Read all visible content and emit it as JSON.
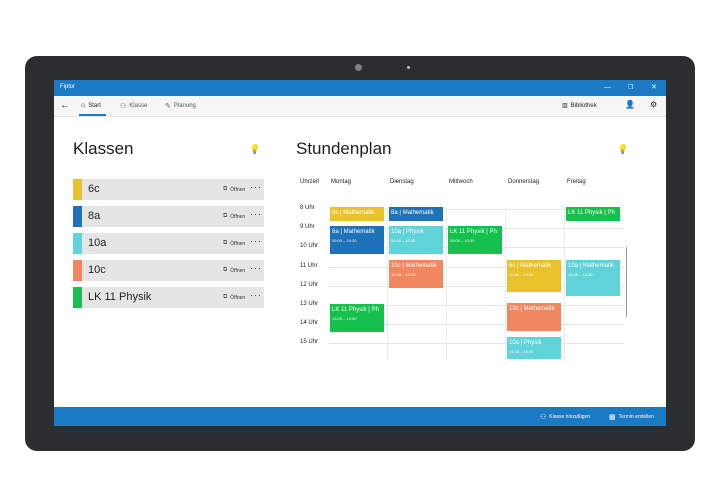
{
  "app": {
    "title": "Fiplor"
  },
  "nav": {
    "tabs": [
      {
        "label": "Start",
        "icon": "home-icon"
      },
      {
        "label": "Klasse",
        "icon": "people-icon"
      },
      {
        "label": "Planung",
        "icon": "pencil-icon"
      }
    ],
    "library_label": "Bibliothek"
  },
  "classes": {
    "title": "Klassen",
    "open_label": "Öffnen",
    "items": [
      {
        "name": "6c",
        "color": "#e9c22b"
      },
      {
        "name": "8a",
        "color": "#1f72b8"
      },
      {
        "name": "10a",
        "color": "#5fd3d8"
      },
      {
        "name": "10c",
        "color": "#f0875f"
      },
      {
        "name": "LK 11 Physik",
        "color": "#15c04c"
      }
    ]
  },
  "schedule": {
    "title": "Stundenplan",
    "time_header": "Uhrzeit",
    "days": [
      "Montag",
      "Dienstag",
      "Mittwoch",
      "Donnerstag",
      "Freitag"
    ],
    "hours": [
      "8 Uhr",
      "9 Uhr",
      "10 Uhr",
      "11 Uhr",
      "12 Uhr",
      "13 Uhr",
      "14 Uhr",
      "15 Uhr"
    ],
    "events": [
      {
        "day": "Montag",
        "title": "6c | Mathematik",
        "time": "",
        "color": "#e9c22b"
      },
      {
        "day": "Montag",
        "title": "8a | Mathematik",
        "time": "09:00 – 10:30",
        "color": "#1f72b8"
      },
      {
        "day": "Montag",
        "title": "LK 11 Physik | Ph",
        "time": "13:00 – 14:30",
        "color": "#15c04c"
      },
      {
        "day": "Dienstag",
        "title": "8a | Mathematik",
        "time": "",
        "color": "#1f72b8"
      },
      {
        "day": "Dienstag",
        "title": "10a | Physik",
        "time": "09:00 – 10:30",
        "color": "#5fd3d8"
      },
      {
        "day": "Dienstag",
        "title": "10c | Mathematik",
        "time": "10:45 – 12:15",
        "color": "#f0875f"
      },
      {
        "day": "Mittwoch",
        "title": "LK 11 Physik | Ph",
        "time": "09:00 – 10:30",
        "color": "#15c04c"
      },
      {
        "day": "Donnerstag",
        "title": "6c | Mathematik",
        "time": "10:45 – 13:00",
        "color": "#e9c22b"
      },
      {
        "day": "Donnerstag",
        "title": "10c | Mathematik",
        "time": "",
        "color": "#f0875f"
      },
      {
        "day": "Donnerstag",
        "title": "10a | Physik",
        "time": "14:45 – 15:15",
        "color": "#5fd3d8"
      },
      {
        "day": "Freitag",
        "title": "LK 11 Physik | Ph",
        "time": "",
        "color": "#15c04c"
      },
      {
        "day": "Freitag",
        "title": "10a | Mathematik",
        "time": "10:45 – 13:30",
        "color": "#5fd3d8"
      }
    ]
  },
  "bottom": {
    "add_class_label": "Klasse hinzufügen",
    "create_event_label": "Termin erstellen"
  }
}
